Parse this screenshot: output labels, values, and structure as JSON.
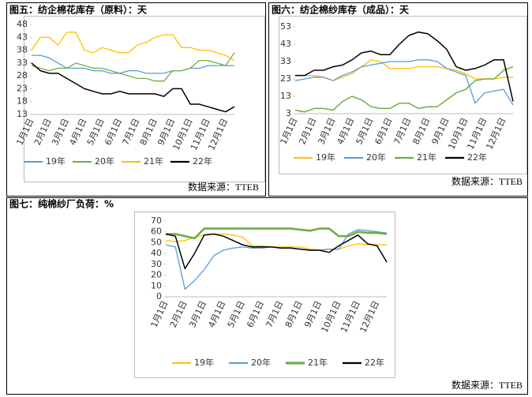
{
  "chart_data": [
    {
      "type": "line",
      "title": "图五：纺企棉花库存（原料）：天",
      "source": "数据来源：TTEB",
      "categories": [
        "1月1日",
        null,
        "2月1日",
        null,
        "3月1日",
        null,
        "4月1日",
        null,
        "5月1日",
        null,
        "6月1日",
        null,
        "7月1日",
        null,
        "8月1日",
        null,
        "9月1日",
        null,
        "10月1日",
        null,
        "11月1日",
        null,
        "12月1日",
        null
      ],
      "ylim": [
        13,
        48
      ],
      "yticks": [
        13,
        18,
        23,
        28,
        33,
        38,
        43,
        48
      ],
      "series": [
        {
          "name": "19年",
          "color": "#5b9bd5",
          "values": [
            36,
            36,
            35,
            33,
            31,
            31,
            31,
            30,
            30,
            29,
            29,
            30,
            30,
            29,
            29,
            29,
            30,
            30,
            31,
            31,
            32,
            32,
            32,
            32
          ]
        },
        {
          "name": "20年",
          "color": "#70ad47",
          "values": [
            32,
            31,
            30,
            31,
            31,
            33,
            32,
            31,
            31,
            30,
            29,
            28,
            27,
            27,
            26,
            26,
            30,
            30,
            31,
            34,
            34,
            33,
            32,
            37
          ]
        },
        {
          "name": "21年",
          "color": "#ffc000",
          "values": [
            38,
            43,
            43,
            40,
            45,
            45,
            38,
            37,
            39,
            38,
            37,
            37,
            40,
            41,
            43,
            44,
            44,
            39,
            39,
            38,
            38,
            37,
            36,
            34
          ]
        },
        {
          "name": "22年",
          "color": "#000000",
          "values": [
            33,
            30,
            29,
            29,
            27,
            25,
            23,
            22,
            21,
            21,
            22,
            21,
            21,
            21,
            21,
            20,
            23,
            23,
            17,
            17,
            16,
            15,
            14,
            16
          ]
        }
      ]
    },
    {
      "type": "line",
      "title": "图六：纺企棉纱库存（成品）：天",
      "source": "数据来源：TTEB",
      "categories": [
        "1月1日",
        null,
        "2月1日",
        null,
        "3月1日",
        null,
        "4月1日",
        null,
        "5月1日",
        null,
        "6月1日",
        null,
        "7月1日",
        null,
        "8月1日",
        null,
        "9月1日",
        null,
        "10月1日",
        null,
        "11月1日",
        null,
        "12月1日",
        null
      ],
      "ylim": [
        3,
        53
      ],
      "yticks": [
        3,
        13,
        23,
        33,
        43,
        53
      ],
      "series": [
        {
          "name": "19年",
          "color": "#ffc000",
          "values": [
            25,
            25,
            25,
            24,
            22,
            24,
            26,
            30,
            34,
            33,
            29,
            29,
            29,
            30,
            30,
            30,
            29,
            28,
            26,
            23,
            23,
            23,
            24,
            24
          ]
        },
        {
          "name": "20年",
          "color": "#5b9bd5",
          "values": [
            22,
            23,
            24,
            24,
            22,
            25,
            27,
            30,
            31,
            32,
            33,
            33,
            33,
            34,
            34,
            33,
            29,
            27,
            25,
            9,
            15,
            16,
            17,
            8
          ]
        },
        {
          "name": "21年",
          "color": "#70ad47",
          "values": [
            5,
            4,
            6,
            6,
            5,
            10,
            13,
            11,
            7,
            6,
            6,
            9,
            9,
            6,
            7,
            7,
            11,
            15,
            17,
            22,
            23,
            23,
            28,
            30
          ]
        },
        {
          "name": "22年",
          "color": "#000000",
          "values": [
            25,
            25,
            28,
            28,
            30,
            31,
            34,
            38,
            39,
            37,
            37,
            43,
            48,
            50,
            49,
            45,
            40,
            30,
            28,
            29,
            31,
            34,
            34,
            10
          ]
        }
      ]
    },
    {
      "type": "line",
      "title": "图七：纯棉纱厂负荷：%",
      "source": "数据来源：TTEB",
      "categories": [
        "1月1日",
        null,
        "2月1日",
        null,
        "3月1日",
        null,
        "4月1日",
        null,
        "5月1日",
        null,
        "6月1日",
        null,
        "7月1日",
        null,
        "8月1日",
        null,
        "9月1日",
        null,
        "10月1日",
        null,
        "11月1日",
        null,
        "12月1日",
        null
      ],
      "ylim": [
        0,
        70
      ],
      "yticks": [
        0,
        10,
        20,
        30,
        40,
        50,
        60,
        70
      ],
      "series": [
        {
          "name": "19年",
          "color": "#ffc000",
          "values": [
            52,
            51,
            52,
            55,
            57,
            58,
            58,
            57,
            55,
            47,
            47,
            46,
            46,
            46,
            46,
            44,
            43,
            44,
            44,
            47,
            49,
            48,
            48,
            48
          ]
        },
        {
          "name": "20年",
          "color": "#5b9bd5",
          "values": [
            48,
            46,
            7,
            15,
            25,
            38,
            43,
            45,
            46,
            45,
            45,
            46,
            45,
            45,
            44,
            43,
            43,
            44,
            44,
            58,
            62,
            61,
            60,
            59
          ]
        },
        {
          "name": "21年",
          "color": "#70ad47",
          "values": [
            58,
            58,
            56,
            54,
            63,
            63,
            63,
            63,
            63,
            63,
            63,
            63,
            63,
            63,
            62,
            61,
            63,
            63,
            56,
            56,
            60,
            59,
            59,
            58
          ]
        },
        {
          "name": "22年",
          "color": "#000000",
          "values": [
            58,
            56,
            26,
            40,
            57,
            58,
            56,
            52,
            48,
            46,
            46,
            46,
            45,
            45,
            44,
            43,
            43,
            41,
            47,
            52,
            57,
            49,
            47,
            32
          ]
        }
      ]
    }
  ]
}
